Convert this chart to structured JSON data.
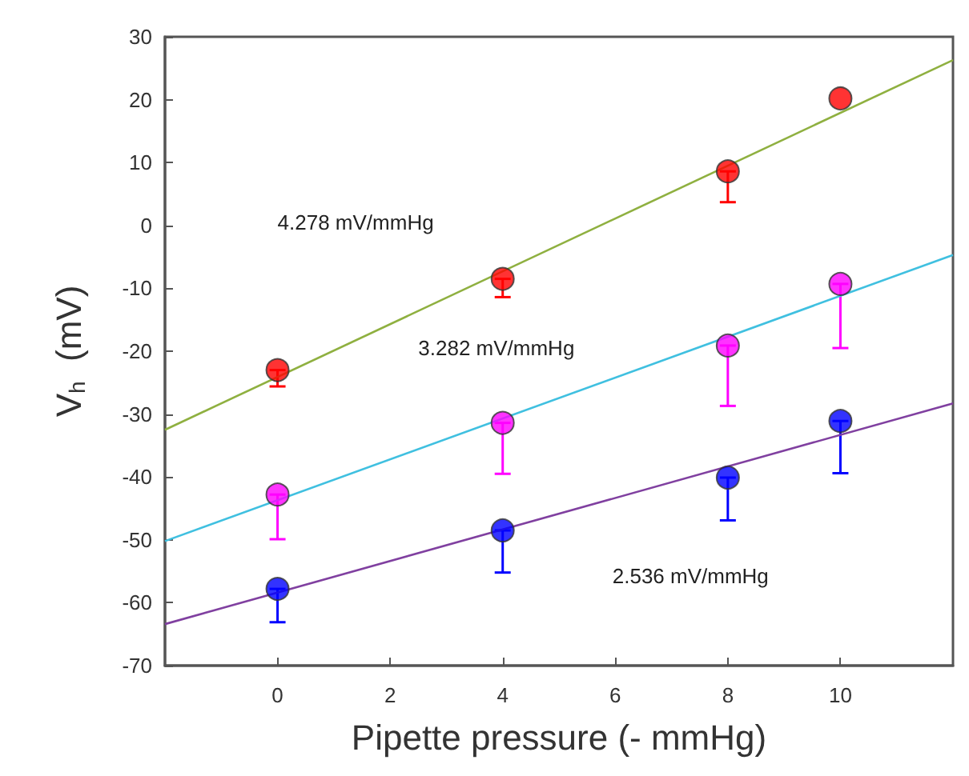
{
  "chart_data": {
    "type": "scatter",
    "xlabel": "Pipette pressure (- mmHg)",
    "ylabel": "V$_{h}$  (mV)",
    "xlim": [
      -2,
      12
    ],
    "xticks": [
      0,
      2,
      4,
      6,
      8,
      10
    ],
    "ylim": [
      -70,
      30
    ],
    "yticks": [
      -70,
      -60,
      -50,
      -40,
      -30,
      -20,
      -10,
      0,
      10,
      20,
      30
    ],
    "grid": false,
    "series": [
      {
        "marker": "circle",
        "color": "#ff0000",
        "x": [
          0,
          4,
          8,
          10
        ],
        "values": [
          -23,
          -8.5,
          8.6,
          20.2
        ],
        "errors": [
          [
            -25.6,
            -23
          ],
          [
            -11.4,
            -8.5
          ],
          [
            3.7,
            8.6
          ],
          null
        ]
      },
      {
        "marker": "circle",
        "color": "#ff00ff",
        "x": [
          0,
          4,
          8,
          10
        ],
        "values": [
          -42.8,
          -31.4,
          -19.1,
          -9.3
        ],
        "errors": [
          [
            -49.9,
            -42.8
          ],
          [
            -39.5,
            -31.4
          ],
          [
            -28.7,
            -19.1
          ],
          [
            -19.5,
            -9.3
          ]
        ]
      },
      {
        "marker": "circle",
        "color": "#0000ff",
        "x": [
          0,
          4,
          8,
          10
        ],
        "values": [
          -57.8,
          -48.5,
          -40.1,
          -31.1
        ],
        "errors": [
          [
            -63.1,
            -57.8
          ],
          [
            -55.2,
            -48.5
          ],
          [
            -46.9,
            -40.1
          ],
          [
            -39.4,
            -31.1
          ]
        ]
      },
      {
        "type": "line",
        "color": "#8fb040",
        "x": [
          -2,
          12
        ],
        "values": [
          -32.5,
          26.3
        ]
      },
      {
        "type": "line",
        "color": "#40c0e0",
        "x": [
          -2,
          12
        ],
        "values": [
          -50.2,
          -4.7
        ]
      },
      {
        "type": "line",
        "color": "#8040a0",
        "x": [
          -2,
          12
        ],
        "values": [
          -63.4,
          -28.3
        ]
      }
    ],
    "annotations": [
      "4.278 mV/mmHg",
      "3.282 mV/mmHg",
      "2.536 mV/mmHg"
    ]
  }
}
